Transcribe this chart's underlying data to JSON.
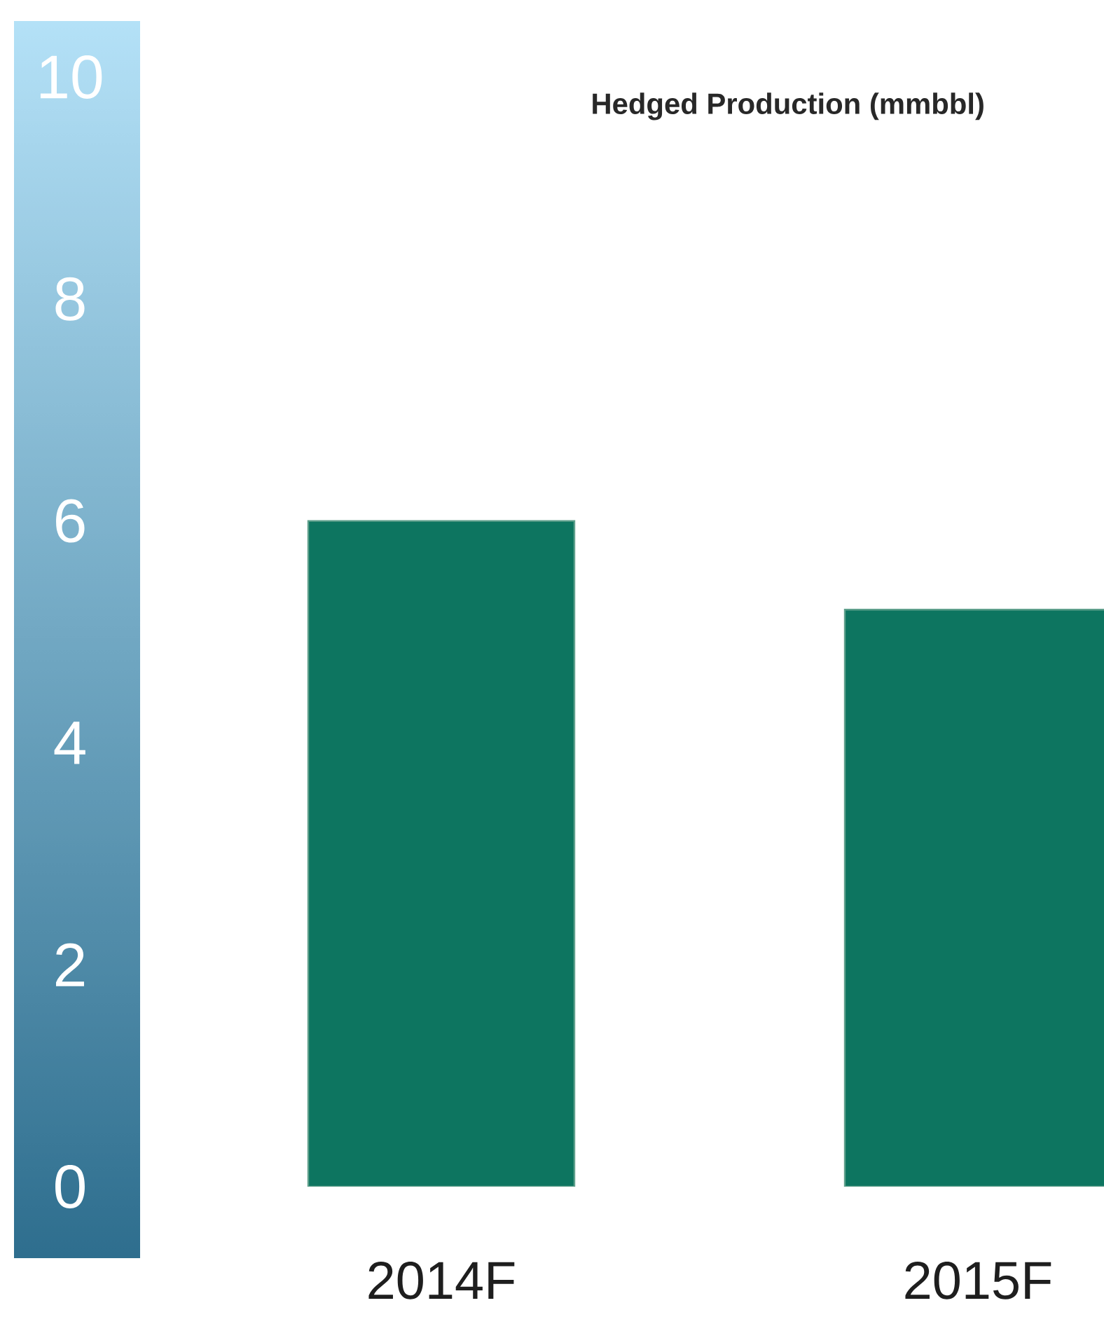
{
  "chart_data": {
    "type": "bar",
    "title": "Hedged Production (mmbbl)",
    "categories": [
      "2014F",
      "2015F"
    ],
    "values": [
      6.0,
      5.2
    ],
    "color": "#0d7560",
    "ylim": [
      0,
      10
    ],
    "yticks": [
      0,
      2,
      4,
      6,
      8,
      10
    ]
  }
}
